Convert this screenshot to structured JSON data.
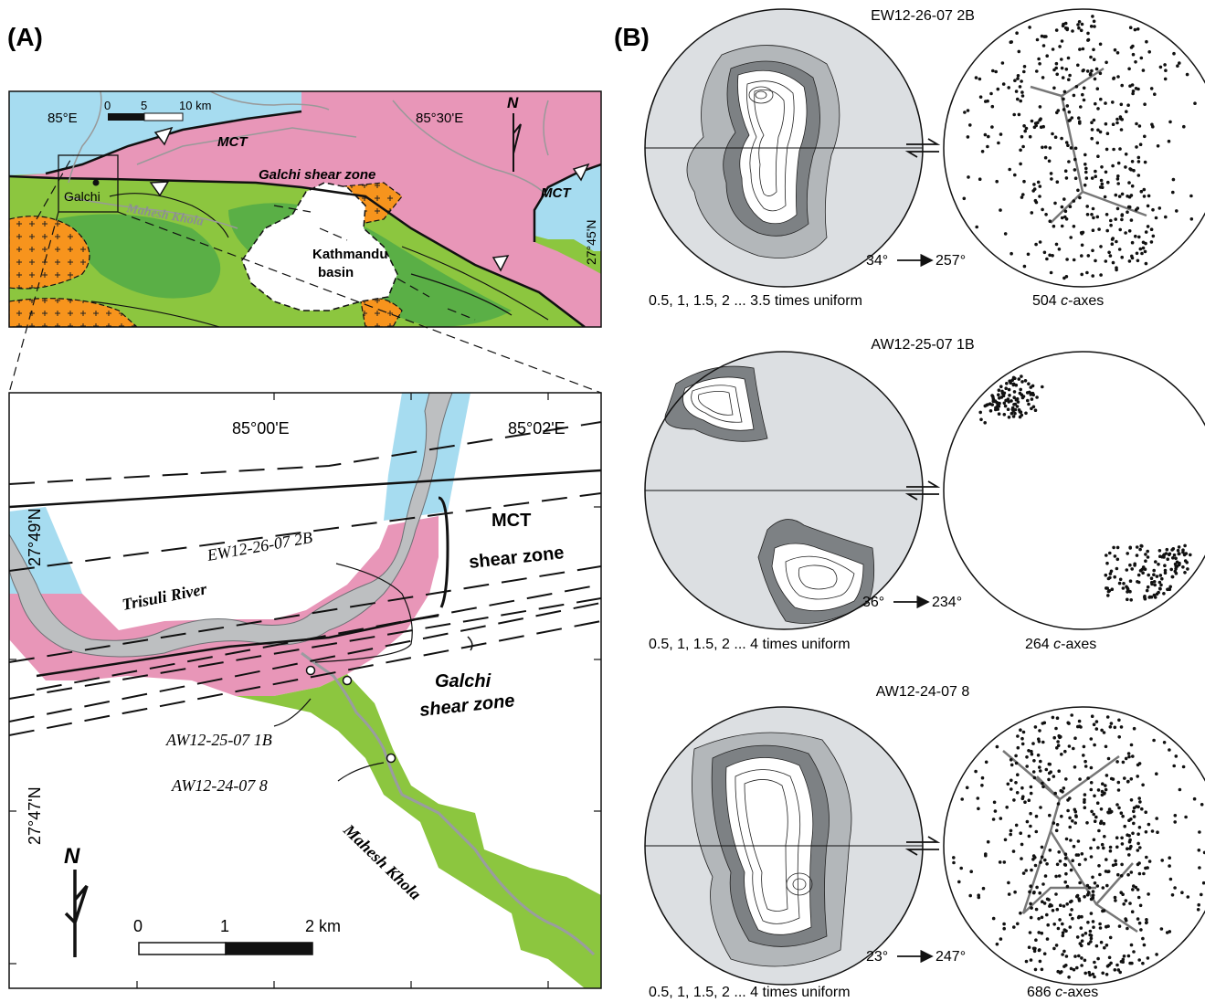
{
  "panel_a": {
    "label": "(A)",
    "overview": {
      "lon_ticks": [
        "85°E",
        "85°30'E"
      ],
      "lat_tick": "27°45'N",
      "scale": {
        "ticks": [
          "0",
          "5",
          "10 km"
        ]
      },
      "north": "N",
      "labels": {
        "mct_left": "MCT",
        "mct_right": "MCT",
        "galchi_zone": "Galchi shear zone",
        "galchi_town": "Galchi",
        "mahesh": "Mahesh Khola",
        "kathmandu": "Kathmandu",
        "basin": "basin"
      }
    },
    "detail": {
      "lon_ticks": [
        "85°00'E",
        "85°02'E"
      ],
      "lat_ticks": [
        "27°49'N",
        "27°47'N"
      ],
      "mct_zone_1": "MCT",
      "mct_zone_2": "shear zone",
      "galchi_1": "Galchi",
      "galchi_2": "shear zone",
      "trisuli": "Trisuli River",
      "mahesh": "Mahesh Khola",
      "samples": [
        "EW12-26-07 2B",
        "AW12-25-07 1B",
        "AW12-24-07 8"
      ],
      "north": "N",
      "scale": {
        "ticks": [
          "0",
          "1",
          "2 km"
        ]
      }
    }
  },
  "panel_b": {
    "label": "(B)",
    "rows": [
      {
        "sample": "EW12-26-07 2B",
        "orientation": "34°",
        "azimuth": "257°",
        "contour_caption": "0.5, 1, 1.5, 2 ... 3.5 times uniform",
        "count": "504",
        "axes_label": "c",
        "axes_suffix": "-axes"
      },
      {
        "sample": "AW12-25-07 1B",
        "orientation": "36°",
        "azimuth": "234°",
        "contour_caption": "0.5, 1, 1.5, 2 ... 4 times uniform",
        "count": "264",
        "axes_label": "c",
        "axes_suffix": "-axes"
      },
      {
        "sample": "AW12-24-07 8",
        "orientation": "23°",
        "azimuth": "247°",
        "contour_caption": "0.5, 1, 1.5, 2 ... 4 times uniform",
        "count": "686",
        "axes_label": "c",
        "axes_suffix": "-axes"
      }
    ]
  },
  "colors": {
    "blue_unit": "#a6dcf0",
    "pink_unit": "#e896b8",
    "light_green": "#8cc63f",
    "dark_green": "#5aaf46",
    "orange_granite": "#f7941d",
    "contour_light": "#dcdfe2",
    "contour_mid": "#b3b7ba",
    "contour_dark": "#7d8184"
  }
}
